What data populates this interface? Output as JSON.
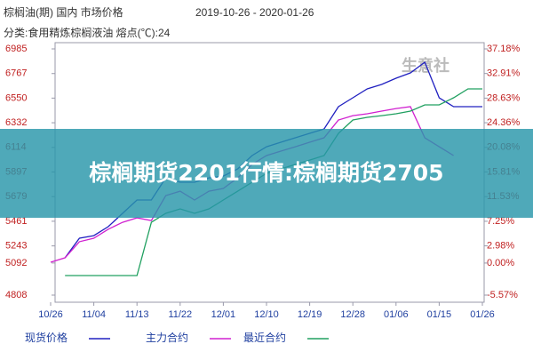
{
  "chart_data": {
    "type": "line",
    "title": "棕榈油(期) 国内 市场价格",
    "date_range": "2019-10-26 - 2020-01-26",
    "subtitle": "分类:食用精炼棕榈液油 熔点(℃):24",
    "watermark": "生意社",
    "categories": [
      "10/26",
      null,
      null,
      "11/04",
      null,
      null,
      "11/13",
      null,
      null,
      "11/22",
      null,
      null,
      "12/01",
      null,
      null,
      "12/10",
      null,
      null,
      "12/19",
      null,
      null,
      "12/28",
      null,
      null,
      "01/06",
      null,
      null,
      "01/15",
      null,
      null,
      "01/26"
    ],
    "series": [
      {
        "name": "现货价格",
        "color": "#2020c0",
        "values": [
          null,
          5138,
          5311,
          5334,
          5413,
          5531,
          5649,
          5649,
          5845,
          5806,
          5806,
          5845,
          5860,
          5924,
          6042,
          6120,
          6160,
          6199,
          6238,
          6277,
          6474,
          6553,
          6631,
          6671,
          6726,
          6773,
          6867,
          6553,
          6474,
          6474,
          6474
        ]
      },
      {
        "name": "主力合约",
        "color": "#d020d0",
        "values": [
          5099,
          5138,
          5280,
          5311,
          5390,
          5452,
          5491,
          5467,
          5688,
          5727,
          5649,
          5727,
          5751,
          5845,
          5963,
          6042,
          6081,
          6120,
          6160,
          6199,
          6356,
          6395,
          6411,
          6435,
          6458,
          6474,
          6199,
          6120,
          6042,
          null,
          null
        ]
      },
      {
        "name": "最近合约",
        "color": "#20a060",
        "values": [
          null,
          4981,
          4981,
          4981,
          4981,
          4981,
          4981,
          5452,
          5531,
          5570,
          5531,
          5570,
          5649,
          5727,
          5806,
          5884,
          5924,
          5963,
          6002,
          6042,
          6238,
          6356,
          6380,
          6395,
          6411,
          6435,
          6490,
          6490,
          6553,
          6631,
          6631
        ]
      }
    ],
    "ylim": [
      4808,
      6985
    ],
    "yticks": [
      4808,
      5092,
      5243,
      5461,
      5679,
      5897,
      6114,
      6332,
      6550,
      6767,
      6985
    ],
    "y2lim": [
      -5.57,
      37.18
    ],
    "y2ticks": [
      {
        "value": -5.57,
        "label": "-5.57%"
      },
      {
        "value": 0,
        "label": "0.00%"
      },
      {
        "value": 2.98,
        "label": "2.98%"
      },
      {
        "value": 7.25,
        "label": "7.25%"
      },
      {
        "value": 11.53,
        "label": "11.53%"
      },
      {
        "value": 15.81,
        "label": "15.81%"
      },
      {
        "value": 20.08,
        "label": "20.08%"
      },
      {
        "value": 24.36,
        "label": "24.36%"
      },
      {
        "value": 28.63,
        "label": "28.63%"
      },
      {
        "value": 32.91,
        "label": "32.91%"
      },
      {
        "value": 37.18,
        "label": "37.18%"
      }
    ]
  },
  "banner": {
    "text": "棕榈期货2201行情:棕榈期货2705"
  }
}
